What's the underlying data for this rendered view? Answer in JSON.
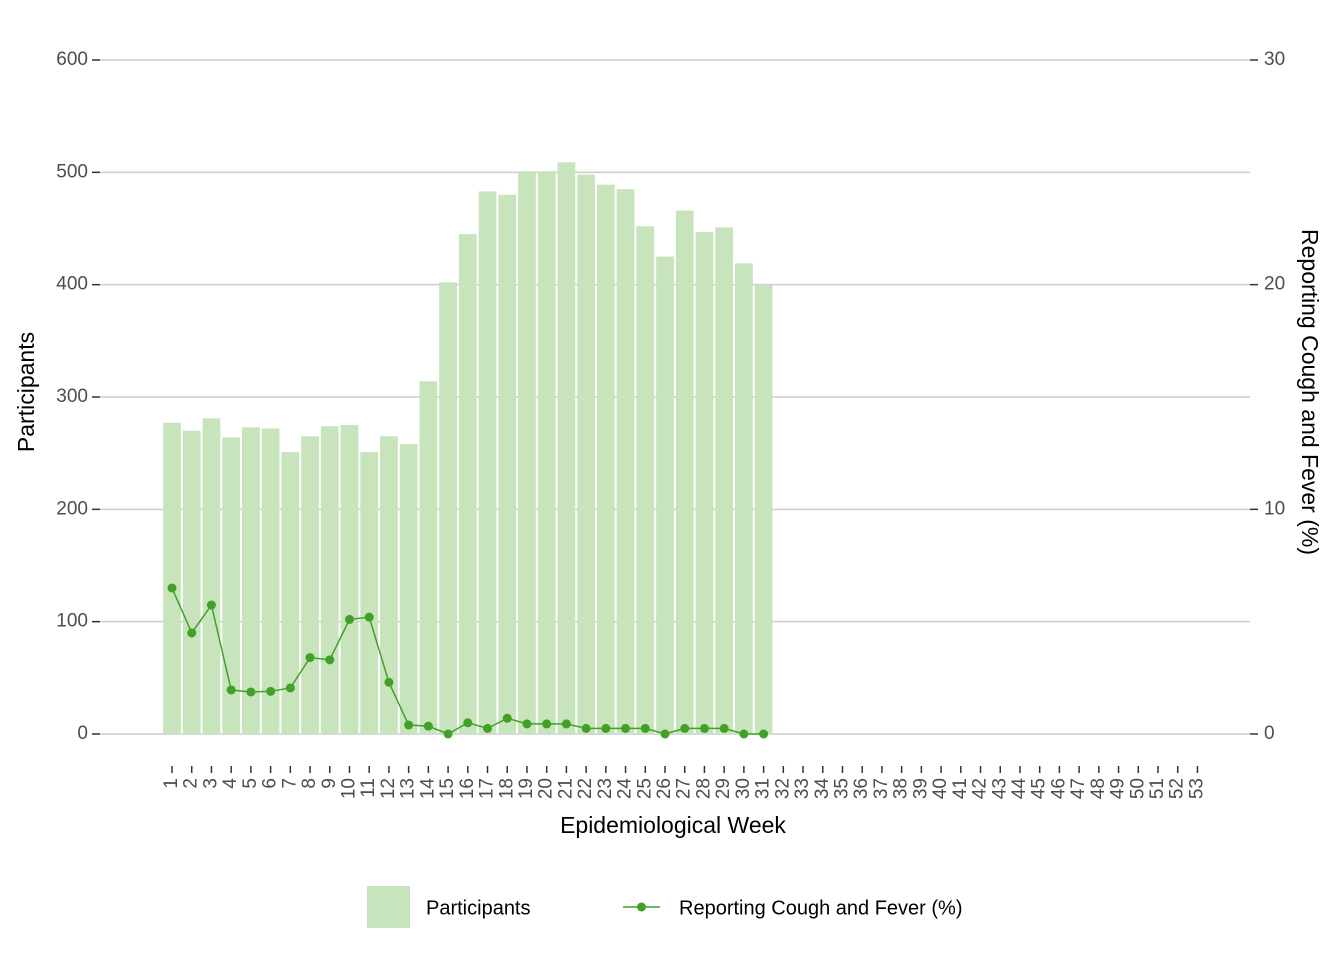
{
  "chart_data": {
    "type": "bar",
    "x_label": "Epidemiological Week",
    "y_label": "Participants",
    "y2_label": "Reporting Cough and Fever (%)",
    "categories": [
      "1",
      "2",
      "3",
      "4",
      "5",
      "6",
      "7",
      "8",
      "9",
      "10",
      "11",
      "12",
      "13",
      "14",
      "15",
      "16",
      "17",
      "18",
      "19",
      "20",
      "21",
      "22",
      "23",
      "24",
      "25",
      "26",
      "27",
      "28",
      "29",
      "30",
      "31",
      "32",
      "33",
      "34",
      "35",
      "36",
      "37",
      "38",
      "39",
      "40",
      "41",
      "42",
      "43",
      "44",
      "45",
      "46",
      "47",
      "48",
      "49",
      "50",
      "51",
      "52",
      "53"
    ],
    "series": [
      {
        "name": "Participants",
        "type": "bar",
        "color": "#c7e4bd",
        "values": [
          277,
          270,
          281,
          264,
          273,
          272,
          251,
          265,
          274,
          275,
          251,
          265,
          258,
          314,
          402,
          445,
          483,
          480,
          501,
          501,
          509,
          498,
          489,
          485,
          452,
          425,
          466,
          447,
          451,
          419,
          400,
          null,
          null,
          null,
          null,
          null,
          null,
          null,
          null,
          null,
          null,
          null,
          null,
          null,
          null,
          null,
          null,
          null,
          null,
          null,
          null,
          null,
          null
        ]
      },
      {
        "name": "Reporting Cough and Fever (%)",
        "type": "line",
        "axis": "y2",
        "color": "#41a127",
        "values": [
          6.5,
          4.5,
          5.74,
          1.96,
          1.87,
          1.9,
          2.05,
          3.4,
          3.3,
          5.1,
          5.2,
          2.3,
          0.4,
          0.35,
          0,
          0.5,
          0.25,
          0.7,
          0.45,
          0.45,
          0.45,
          0.25,
          0.25,
          0.25,
          0.25,
          0,
          0.25,
          0.25,
          0.25,
          0,
          0,
          null,
          null,
          null,
          null,
          null,
          null,
          null,
          null,
          null,
          null,
          null,
          null,
          null,
          null,
          null,
          null,
          null,
          null,
          null,
          null,
          null,
          null
        ]
      }
    ],
    "ylim": [
      0,
      600
    ],
    "yticks": [
      0,
      100,
      200,
      300,
      400,
      500,
      600
    ],
    "y2lim": [
      0,
      30
    ],
    "y2ticks": [
      0,
      10,
      20,
      30
    ],
    "grid": true,
    "legend": "bottom"
  }
}
